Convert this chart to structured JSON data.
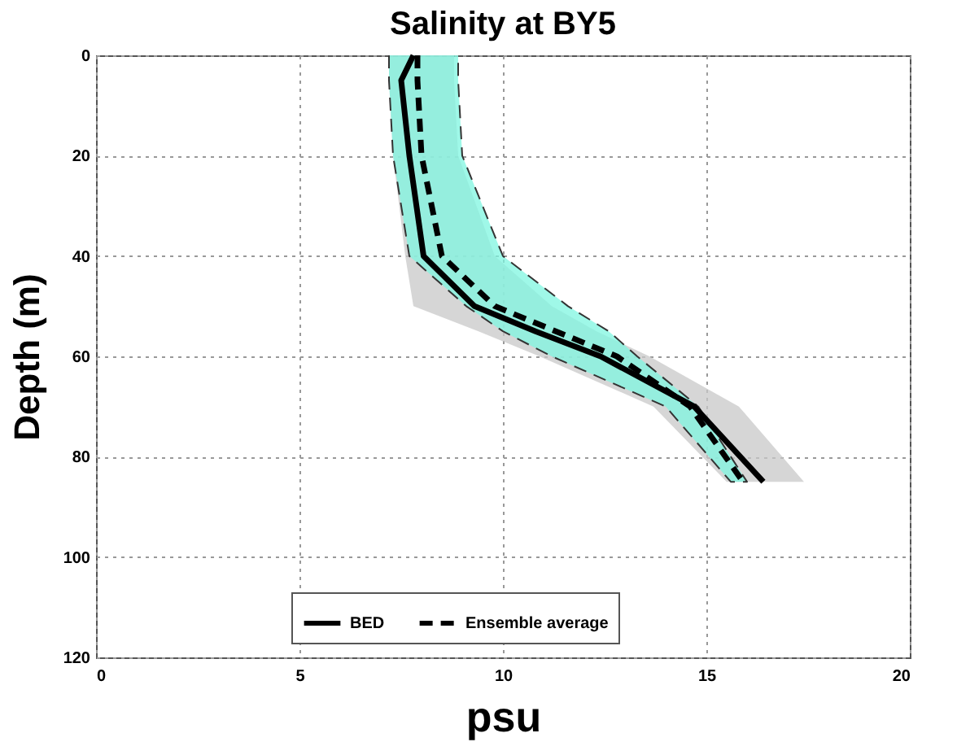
{
  "chart_data": {
    "type": "line",
    "title": "Salinity at BY5",
    "xlabel": "psu",
    "ylabel": "Depth (m)",
    "xlim": [
      0,
      20
    ],
    "xticks": [
      0,
      5,
      10,
      15,
      20
    ],
    "ylim": [
      120,
      0
    ],
    "yticks": [
      0,
      20,
      40,
      60,
      80,
      100,
      120
    ],
    "grid": true,
    "legend": "bottom",
    "series": [
      {
        "type": "area",
        "color": "#c8c8c8",
        "x": [
          7.2,
          7.2,
          7.3,
          7.6,
          7.8,
          9.4,
          10.9,
          13.7,
          15.5,
          17.4,
          15.8,
          13.6,
          12.3,
          11.2,
          9.8,
          8.9,
          8.8,
          8.8
        ],
        "values": [
          0,
          5,
          20,
          40,
          50,
          55,
          60,
          70,
          85,
          85,
          70,
          60,
          55,
          50,
          40,
          20,
          5,
          0
        ]
      },
      {
        "type": "area",
        "color": "#7ff5e0",
        "line_style": "dashed",
        "x": [
          7.2,
          7.2,
          7.3,
          7.7,
          9.1,
          10.0,
          11.2,
          14.0,
          15.6,
          16.0,
          14.8,
          13.3,
          12.6,
          11.6,
          10.0,
          9.0,
          8.9,
          8.9
        ],
        "values": [
          0,
          5,
          20,
          40,
          50,
          55,
          60,
          70,
          85,
          85,
          70,
          60,
          55,
          50,
          40,
          20,
          5,
          0
        ]
      },
      {
        "type": "line",
        "name": "BED",
        "color": "#000000",
        "line_style": "solid",
        "x": [
          7.8,
          7.5,
          7.7,
          8.05,
          9.3,
          10.8,
          12.4,
          14.7,
          16.4
        ],
        "values": [
          0,
          5,
          20,
          40,
          50,
          55,
          60,
          70,
          85
        ]
      },
      {
        "type": "line",
        "name": "Ensemble average",
        "color": "#000000",
        "line_style": "dashed",
        "x": [
          7.9,
          7.9,
          8.0,
          8.5,
          9.8,
          11.3,
          12.8,
          14.6,
          15.9
        ],
        "values": [
          0,
          5,
          20,
          40,
          50,
          55,
          60,
          70,
          85
        ]
      }
    ]
  }
}
